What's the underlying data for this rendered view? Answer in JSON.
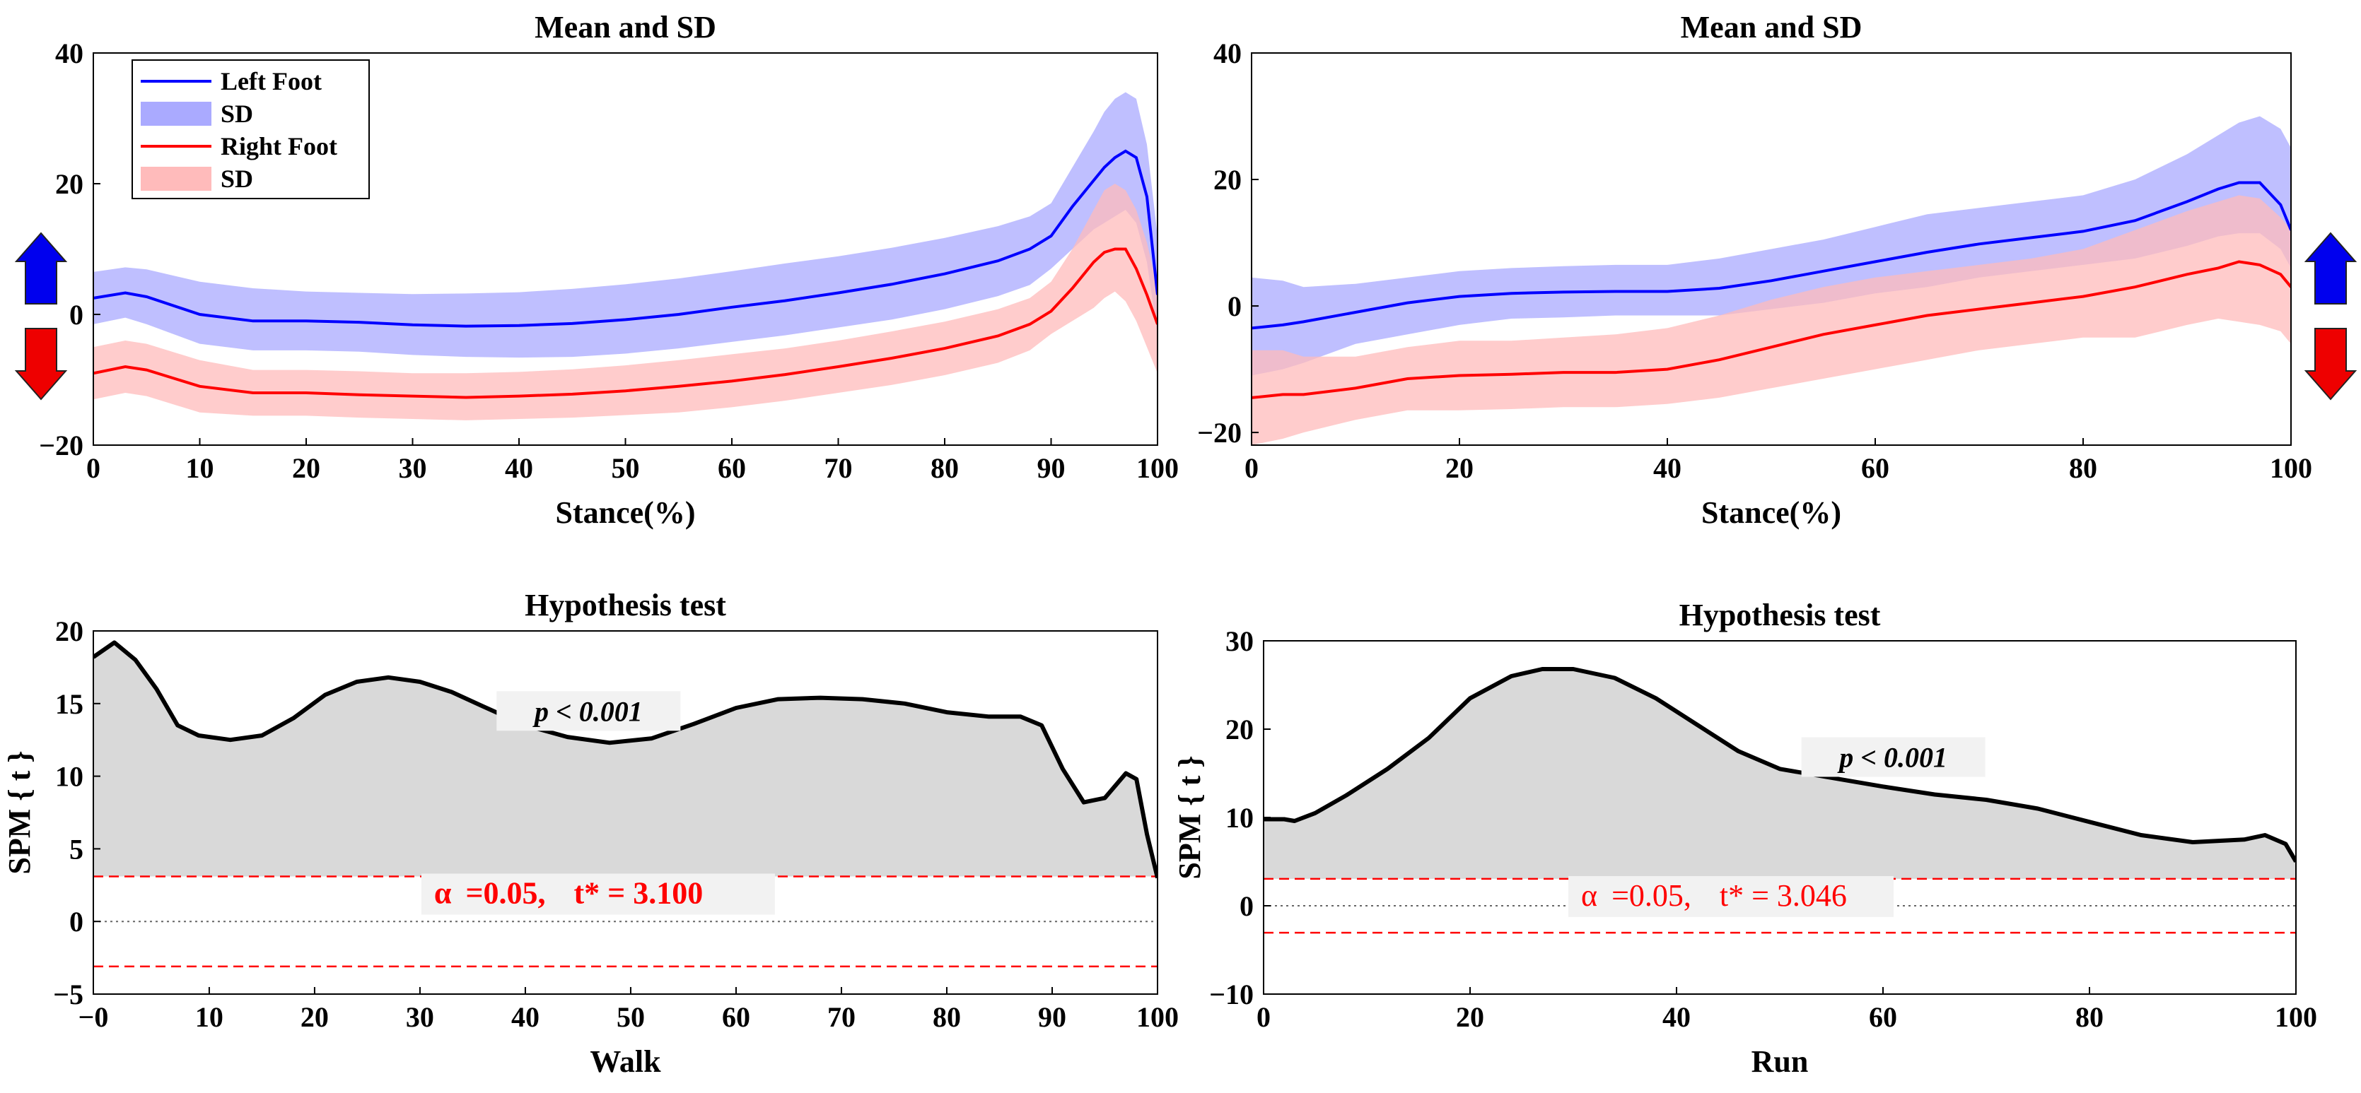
{
  "chart_data": [
    {
      "id": "walk-mean",
      "type": "line",
      "title": "Mean and SD",
      "xlabel": "Stance(%)",
      "ylabel": "",
      "xlim": [
        0,
        100
      ],
      "ylim": [
        -20,
        40
      ],
      "xticks": [
        "0",
        "10",
        "20",
        "30",
        "40",
        "50",
        "60",
        "70",
        "80",
        "90",
        "100"
      ],
      "yticks": [
        "−20",
        "0",
        "20",
        "40"
      ],
      "legend": {
        "position": "top-left",
        "entries": [
          "Left Foot",
          "SD",
          "Right Foot",
          "SD"
        ]
      },
      "x": [
        0,
        3,
        5,
        10,
        15,
        20,
        25,
        30,
        35,
        40,
        45,
        50,
        55,
        60,
        65,
        70,
        75,
        80,
        85,
        88,
        90,
        92,
        94,
        95,
        96,
        97,
        98,
        99,
        100
      ],
      "series": [
        {
          "name": "Left Foot",
          "color": "#0000ff",
          "band_color": "#aaaaff",
          "mean": [
            2.5,
            3.3,
            2.7,
            0,
            -1,
            -1,
            -1.2,
            -1.6,
            -1.8,
            -1.7,
            -1.4,
            -0.8,
            0,
            1.1,
            2.1,
            3.3,
            4.6,
            6.2,
            8.2,
            10,
            12,
            16.5,
            20.5,
            22.5,
            24,
            25,
            24,
            18,
            3
          ],
          "sd_upper": [
            6.5,
            7.2,
            6.9,
            5,
            4,
            3.5,
            3.3,
            3.1,
            3.2,
            3.4,
            3.9,
            4.6,
            5.5,
            6.6,
            7.8,
            8.9,
            10.2,
            11.7,
            13.5,
            15,
            17,
            22.5,
            28,
            31,
            33,
            34,
            33,
            26,
            12
          ],
          "sd_lower": [
            -1.5,
            -0.5,
            -1.5,
            -4.5,
            -5.5,
            -5.5,
            -5.7,
            -6.2,
            -6.5,
            -6.6,
            -6.5,
            -6,
            -5.2,
            -4.2,
            -3.2,
            -2,
            -0.8,
            0.8,
            2.8,
            4.5,
            7,
            10,
            13,
            14,
            15,
            16,
            14,
            8,
            -3
          ]
        },
        {
          "name": "Right Foot",
          "color": "#ff0000",
          "band_color": "#ffbbbb",
          "mean": [
            -9,
            -8,
            -8.5,
            -11,
            -12,
            -12,
            -12.3,
            -12.5,
            -12.7,
            -12.5,
            -12.2,
            -11.7,
            -11,
            -10.2,
            -9.2,
            -8,
            -6.7,
            -5.2,
            -3.3,
            -1.5,
            0.5,
            4,
            8,
            9.5,
            10,
            10,
            7,
            3,
            -1.5
          ],
          "sd_upper": [
            -5,
            -4,
            -4.5,
            -7,
            -8.5,
            -8.5,
            -8.7,
            -9,
            -9,
            -8.8,
            -8.4,
            -7.8,
            -7,
            -6.1,
            -5.2,
            -4,
            -2.6,
            -1.1,
            0.8,
            2.5,
            5,
            10,
            16,
            19,
            20,
            19,
            16,
            11,
            4
          ],
          "sd_lower": [
            -13,
            -12,
            -12.5,
            -15,
            -15.5,
            -15.5,
            -15.8,
            -16,
            -16.2,
            -16,
            -15.8,
            -15.4,
            -15,
            -14.2,
            -13.2,
            -12,
            -10.8,
            -9.3,
            -7.4,
            -5.5,
            -3,
            -1,
            1,
            2.5,
            3.5,
            2,
            -1,
            -5,
            -9
          ]
        }
      ]
    },
    {
      "id": "run-mean",
      "type": "line",
      "title": "Mean and SD",
      "xlabel": "Stance(%)",
      "ylabel": "",
      "xlim": [
        0,
        100
      ],
      "ylim": [
        -22,
        40
      ],
      "xticks": [
        "0",
        "20",
        "40",
        "60",
        "80",
        "100"
      ],
      "yticks": [
        "−20",
        "0",
        "20",
        "40"
      ],
      "x": [
        0,
        3,
        5,
        10,
        15,
        20,
        25,
        30,
        35,
        40,
        45,
        50,
        55,
        60,
        65,
        70,
        75,
        80,
        85,
        90,
        93,
        95,
        97,
        99,
        100
      ],
      "series": [
        {
          "name": "Left Foot",
          "color": "#0000ff",
          "band_color": "#aaaaff",
          "mean": [
            -3.5,
            -3,
            -2.5,
            -1,
            0.5,
            1.5,
            2,
            2.2,
            2.3,
            2.3,
            2.8,
            4,
            5.5,
            7,
            8.5,
            9.8,
            10.8,
            11.8,
            13.5,
            16.5,
            18.5,
            19.5,
            19.5,
            16,
            12
          ],
          "sd_upper": [
            4.5,
            4,
            3,
            3.5,
            4.5,
            5.5,
            6,
            6.3,
            6.5,
            6.5,
            7.5,
            9,
            10.5,
            12.5,
            14.5,
            15.5,
            16.5,
            17.5,
            20,
            24,
            27,
            29,
            30,
            28,
            25
          ],
          "sd_lower": [
            -11,
            -10,
            -9,
            -6,
            -4.5,
            -3,
            -2,
            -1.8,
            -1.5,
            -1.5,
            -1.5,
            -0.5,
            0.5,
            2,
            3,
            4.5,
            5.5,
            6.5,
            7.5,
            9.5,
            11,
            11.5,
            11.5,
            9,
            6
          ]
        },
        {
          "name": "Right Foot",
          "color": "#ff0000",
          "band_color": "#ffbbbb",
          "mean": [
            -14.5,
            -14,
            -14,
            -13,
            -11.5,
            -11,
            -10.8,
            -10.5,
            -10.5,
            -10,
            -8.5,
            -6.5,
            -4.5,
            -3,
            -1.5,
            -0.5,
            0.5,
            1.5,
            3,
            5,
            6,
            7,
            6.5,
            5,
            3
          ],
          "sd_upper": [
            -7,
            -7,
            -8,
            -8,
            -6.5,
            -5.5,
            -5.5,
            -5,
            -4.5,
            -3.5,
            -1.5,
            1,
            3,
            4.5,
            5.5,
            6.5,
            7.5,
            9,
            12,
            15,
            16.5,
            17.5,
            17,
            14,
            12
          ],
          "sd_lower": [
            -22,
            -21,
            -20,
            -18,
            -16.5,
            -16.5,
            -16.3,
            -16,
            -16,
            -15.5,
            -14.5,
            -13,
            -11.5,
            -10,
            -8.5,
            -7,
            -6,
            -5,
            -5,
            -3,
            -2,
            -2.5,
            -3,
            -4,
            -6
          ]
        }
      ]
    },
    {
      "id": "walk-spm",
      "type": "area",
      "title": "Hypothesis test",
      "xlabel": "Walk",
      "ylabel": "SPM { t }",
      "xlim": [
        -1,
        100
      ],
      "ylim": [
        -5,
        20
      ],
      "xticks": [
        "−0",
        "10",
        "20",
        "30",
        "40",
        "50",
        "60",
        "70",
        "80",
        "90",
        "100"
      ],
      "yticks": [
        "−5",
        "0",
        "5",
        "10",
        "15",
        "20"
      ],
      "x": [
        -1,
        1,
        3,
        5,
        7,
        9,
        12,
        15,
        18,
        21,
        24,
        27,
        30,
        33,
        36,
        40,
        44,
        48,
        52,
        56,
        60,
        64,
        68,
        72,
        76,
        80,
        84,
        87,
        89,
        91,
        93,
        95,
        97,
        98,
        99,
        100
      ],
      "values": [
        18.2,
        19.2,
        18,
        16,
        13.5,
        12.8,
        12.5,
        12.8,
        14,
        15.6,
        16.5,
        16.8,
        16.5,
        15.8,
        14.8,
        13.5,
        12.7,
        12.3,
        12.6,
        13.6,
        14.7,
        15.3,
        15.4,
        15.3,
        15,
        14.4,
        14.1,
        14.1,
        13.5,
        10.5,
        8.2,
        8.5,
        10.2,
        9.8,
        6,
        3
      ],
      "threshold": 3.1,
      "annotation_p": "p < 0.001",
      "annotation_alpha": "α",
      "annotation_alpha_text": "=0.05,",
      "annotation_t": "t* = 3.100",
      "colors": {
        "line": "#000000",
        "fill": "#d9d9d9",
        "threshold": "#ff0000",
        "zero": "#666666"
      }
    },
    {
      "id": "run-spm",
      "type": "area",
      "title": "Hypothesis test",
      "xlabel": "Run",
      "ylabel": "SPM { t }",
      "xlim": [
        0,
        100
      ],
      "ylim": [
        -10,
        30
      ],
      "xticks": [
        "0",
        "20",
        "40",
        "60",
        "80",
        "100"
      ],
      "yticks": [
        "−10",
        "0",
        "10",
        "20",
        "30"
      ],
      "x": [
        0,
        2,
        3,
        5,
        8,
        12,
        16,
        20,
        24,
        27,
        30,
        34,
        38,
        42,
        46,
        50,
        55,
        60,
        65,
        70,
        75,
        80,
        85,
        90,
        95,
        97,
        99,
        100
      ],
      "values": [
        9.8,
        9.8,
        9.6,
        10.5,
        12.5,
        15.5,
        19,
        23.5,
        26,
        26.8,
        26.8,
        25.8,
        23.5,
        20.5,
        17.5,
        15.5,
        14.5,
        13.5,
        12.6,
        12,
        11,
        9.5,
        8,
        7.2,
        7.5,
        8,
        7,
        5
      ],
      "threshold": 3.046,
      "annotation_p": "p < 0.001",
      "annotation_alpha": "α",
      "annotation_alpha_text": "=0.05,",
      "annotation_t": "t* = 3.046",
      "colors": {
        "line": "#000000",
        "fill": "#d9d9d9",
        "threshold": "#ff0000",
        "zero": "#666666"
      }
    }
  ],
  "arrows": {
    "up_color": "#0000ee",
    "down_color": "#ee0000"
  }
}
